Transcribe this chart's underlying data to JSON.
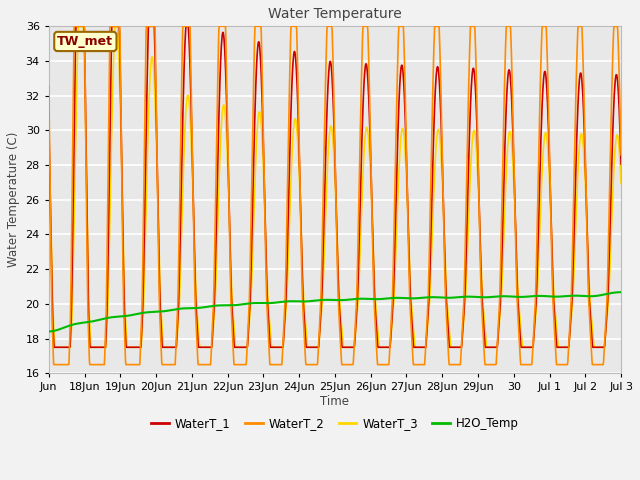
{
  "title": "Water Temperature",
  "xlabel": "Time",
  "ylabel": "Water Temperature (C)",
  "ylim": [
    16,
    36
  ],
  "tick_labels": [
    "Jun",
    "18Jun",
    "19Jun",
    "20Jun",
    "21Jun",
    "22Jun",
    "23Jun",
    "24Jun",
    "25Jun",
    "26Jun",
    "27Jun",
    "28Jun",
    "29Jun",
    "30",
    "Jul 1",
    "Jul 2",
    "Jul 3"
  ],
  "annotation_text": "TW_met",
  "annotation_color": "#8B0000",
  "annotation_bg": "#FFFFCC",
  "annotation_border": "#996600",
  "line_colors": {
    "WaterT_1": "#CC0000",
    "WaterT_2": "#FF8C00",
    "WaterT_3": "#FFD700",
    "H2O_Temp": "#00BB00"
  },
  "line_widths": {
    "WaterT_1": 1.2,
    "WaterT_2": 1.2,
    "WaterT_3": 1.2,
    "H2O_Temp": 1.5
  },
  "bg_color": "#E8E8E8",
  "grid_color": "#FFFFFF",
  "yticks": [
    16,
    18,
    20,
    22,
    24,
    26,
    28,
    30,
    32,
    34,
    36
  ]
}
